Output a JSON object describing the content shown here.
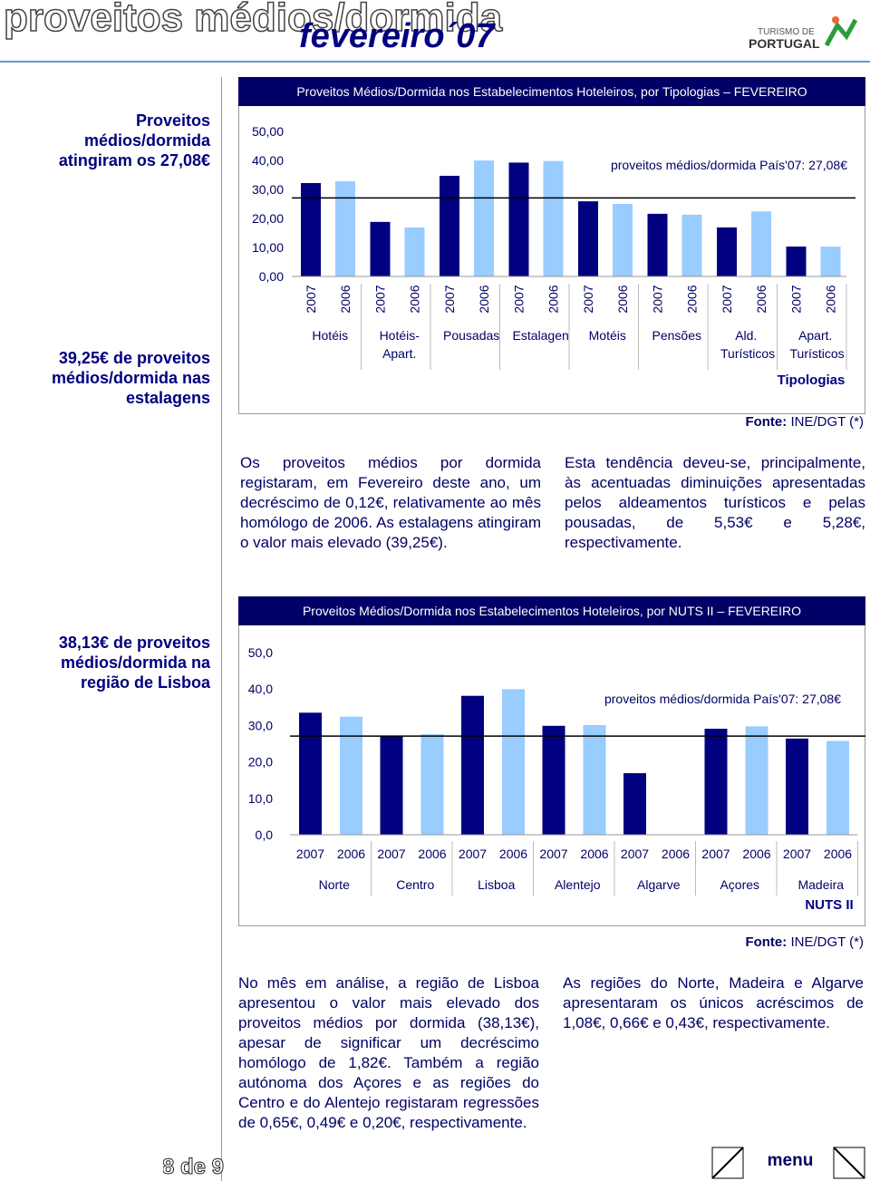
{
  "header": {
    "title": "proveitos médios/dormida",
    "month": "fevereiro´07",
    "logo_line1": "TURISMO DE",
    "logo_line2": "PORTUGAL"
  },
  "highlights": [
    "Proveitos médios/dormida atingiram os 27,08€",
    "39,25€ de proveitos médios/dormida nas estalagens",
    "38,13€ de proveitos médios/dormida na região de Lisboa"
  ],
  "chart_data": [
    {
      "type": "bar",
      "title": "Proveitos Médios/Dormida nos Estabelecimentos Hoteleiros, por Tipologias – FEVEREIRO",
      "categories": [
        "Hotéis",
        "Hotéis-Apart.",
        "Pousadas",
        "Estalagens",
        "Motéis",
        "Pensões",
        "Ald. Turísticos",
        "Apart. Turísticos"
      ],
      "series": [
        {
          "name": "2007",
          "color": "#000080",
          "values": [
            32.2,
            18.8,
            34.7,
            39.25,
            25.9,
            21.6,
            16.9,
            10.3
          ]
        },
        {
          "name": "2006",
          "color": "#99ccff",
          "values": [
            32.8,
            16.9,
            39.98,
            39.8,
            25.0,
            21.3,
            22.43,
            10.3
          ]
        }
      ],
      "ylim": [
        0,
        50
      ],
      "yticks": [
        {
          "value": 0,
          "label": "0,00"
        },
        {
          "value": 10,
          "label": "10,00"
        },
        {
          "value": 20,
          "label": "20,00"
        },
        {
          "value": 30,
          "label": "30,00"
        },
        {
          "value": 40,
          "label": "40,00"
        },
        {
          "value": 50,
          "label": "50,00"
        }
      ],
      "reference": {
        "value": 27.08,
        "label": "proveitos médios/dormida País'07: 27,08€"
      },
      "xlabel": "Tipologias",
      "source_label": "Fonte:",
      "source": "INE/DGT (*)",
      "grid": false
    },
    {
      "type": "bar",
      "title": "Proveitos Médios/Dormida nos Estabelecimentos Hoteleiros, por NUTS II – FEVEREIRO",
      "categories": [
        "Norte",
        "Centro",
        "Lisboa",
        "Alentejo",
        "Algarve",
        "Açores",
        "Madeira"
      ],
      "series": [
        {
          "name": "2007",
          "color": "#000080",
          "values": [
            33.5,
            27.1,
            38.13,
            29.9,
            16.9,
            29.1,
            26.4
          ]
        },
        {
          "name": "2006",
          "color": "#99ccff",
          "values": [
            32.42,
            27.59,
            39.95,
            30.1,
            null,
            29.75,
            25.74
          ]
        }
      ],
      "ylim": [
        0,
        50
      ],
      "yticks": [
        {
          "value": 0,
          "label": "0,0"
        },
        {
          "value": 10,
          "label": "10,0"
        },
        {
          "value": 20,
          "label": "20,0"
        },
        {
          "value": 30,
          "label": "30,0"
        },
        {
          "value": 40,
          "label": "40,0"
        },
        {
          "value": 50,
          "label": "50,0"
        }
      ],
      "reference": {
        "value": 27.08,
        "label": "proveitos médios/dormida País'07: 27,08€"
      },
      "xlabel": "NUTS II",
      "source_label": "Fonte:",
      "source": "INE/DGT (*)",
      "grid": false
    }
  ],
  "paragraphs": [
    [
      "Os proveitos médios por dormida registaram, em Fevereiro deste ano, um decréscimo de 0,12€, relativamente ao mês homólogo de 2006. As estalagens atingiram o valor mais elevado (39,25€).",
      "Esta tendência deveu-se, principalmente, às acentuadas diminuições apresentadas pelos aldeamentos turísticos e pelas pousadas, de 5,53€ e 5,28€, respectivamente."
    ],
    [
      "No mês em análise, a região de Lisboa apresentou o valor mais elevado dos proveitos médios por dormida (38,13€), apesar de significar um decréscimo homólogo de 1,82€. Também a região autónoma dos Açores e as regiões do Centro e do Alentejo registaram regressões de 0,65€, 0,49€ e 0,20€, respectivamente.",
      "As regiões do Norte, Madeira e Algarve apresentaram os únicos acréscimos de 1,08€, 0,66€ e 0,43€, respectivamente."
    ]
  ],
  "footer": {
    "page": "8 de 9",
    "menu": "menu"
  }
}
